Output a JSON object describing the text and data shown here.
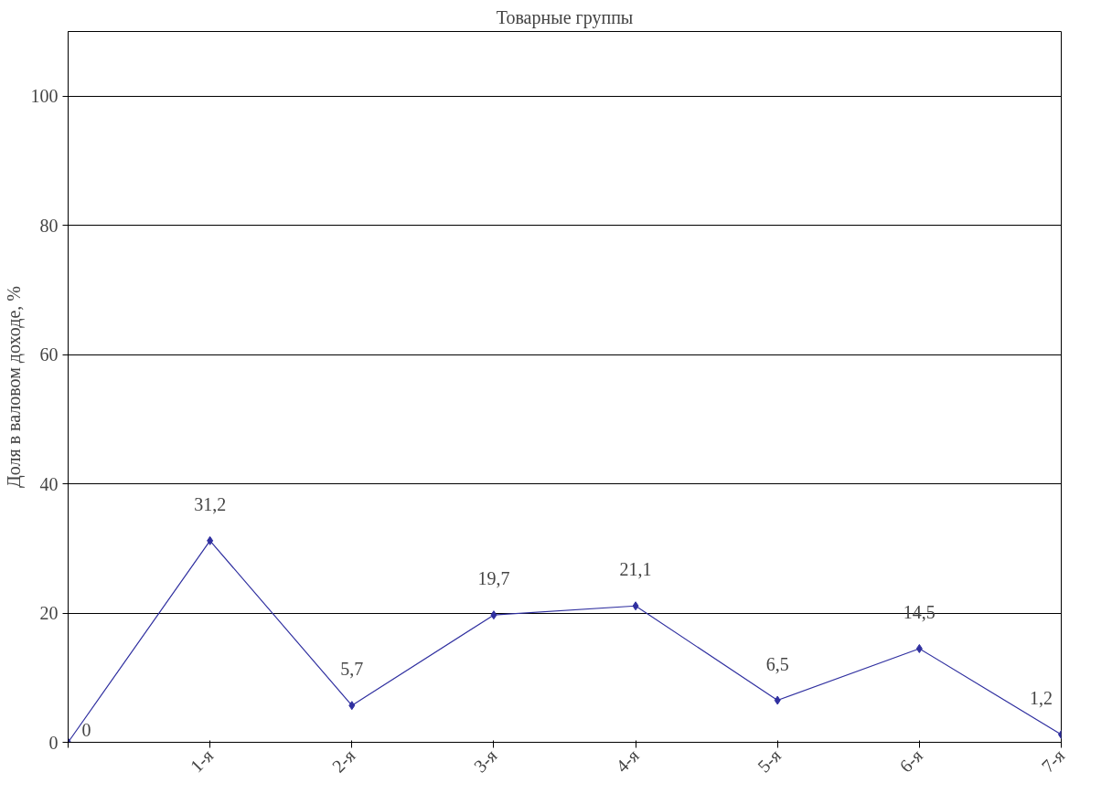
{
  "chart_data": {
    "type": "line",
    "title": "Товарные группы",
    "ylabel": "Доля в валовом доходе, %",
    "categories": [
      null,
      "1-я",
      "2-я",
      "3-я",
      "4-я",
      "5-я",
      "6-я",
      "7-я"
    ],
    "series": [
      {
        "color": "#3030a0",
        "values": [
          0,
          31.2,
          5.7,
          19.7,
          21.1,
          6.5,
          14.5,
          1.2
        ],
        "value_labels": [
          "0",
          "31,2",
          "5,7",
          "19,7",
          "21,1",
          "6,5",
          "14,5",
          "1,2"
        ]
      }
    ],
    "ylim": [
      0,
      110
    ],
    "yticks": [
      0,
      20,
      40,
      60,
      80,
      100
    ],
    "grid": "y",
    "marker": "diamond",
    "line_style": "solid",
    "data_labels": false
  }
}
